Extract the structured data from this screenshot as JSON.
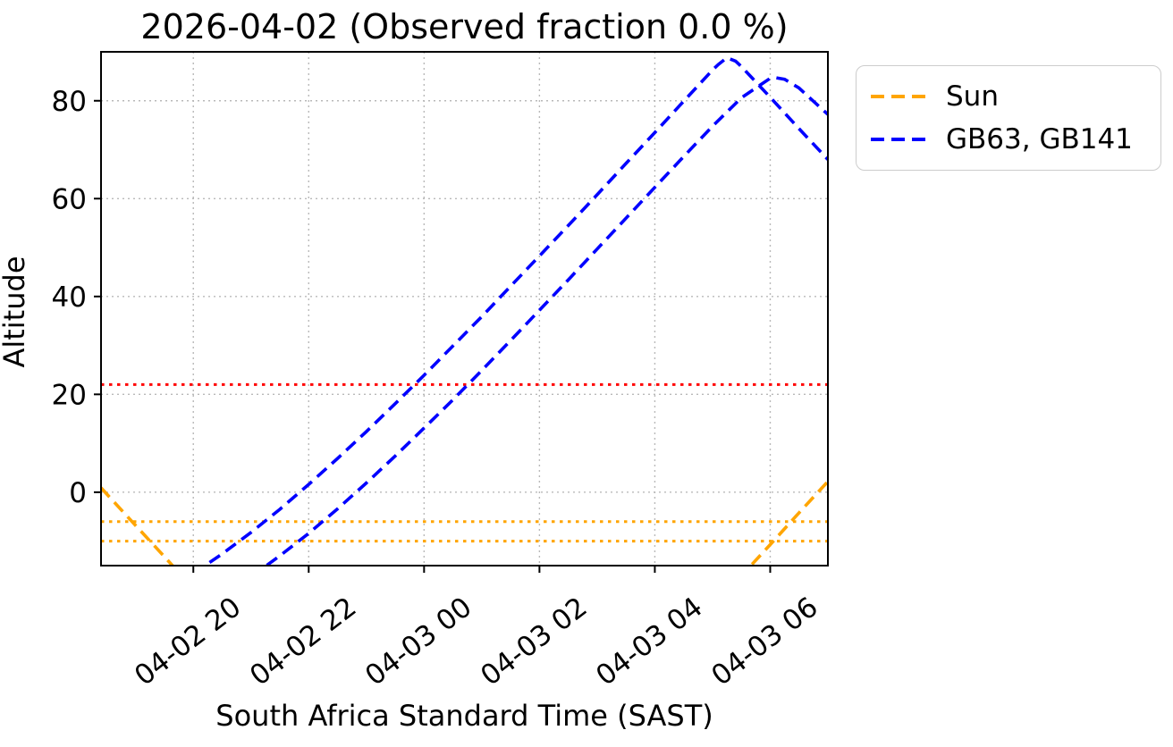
{
  "chart_data": {
    "type": "line",
    "title": "2026-04-02 (Observed fraction 0.0 %)",
    "xlabel": "South Africa Standard Time (SAST)",
    "ylabel": "Altitude",
    "xlim": [
      18.4,
      31.0
    ],
    "ylim": [
      -15,
      90
    ],
    "grid": true,
    "legend_position": "outside upper right",
    "xticks": [
      {
        "t": 20,
        "label": "04-02 20"
      },
      {
        "t": 22,
        "label": "04-02 22"
      },
      {
        "t": 24,
        "label": "04-03 00"
      },
      {
        "t": 26,
        "label": "04-03 02"
      },
      {
        "t": 28,
        "label": "04-03 04"
      },
      {
        "t": 30,
        "label": "04-03 06"
      }
    ],
    "yticks": [
      0,
      20,
      40,
      60,
      80
    ],
    "reference_lines": [
      {
        "name": "elevation-limit-line",
        "value": 22,
        "color": "#ff0000",
        "linestyle": "dotted"
      },
      {
        "name": "sun-twilight-line-upper",
        "value": -6,
        "color": "#ffa500",
        "linestyle": "dotted"
      },
      {
        "name": "sun-twilight-line-lower",
        "value": -10,
        "color": "#ffa500",
        "linestyle": "dotted"
      }
    ],
    "series": [
      {
        "name": "Sun",
        "color": "#ffa500",
        "linestyle": "dashed",
        "tracks": [
          [
            [
              18.4,
              0.9
            ],
            [
              18.5,
              -0.4
            ],
            [
              19.0,
              -6.8
            ],
            [
              19.5,
              -13.2
            ],
            [
              20.0,
              -19.7
            ],
            [
              20.5,
              -26.0
            ],
            [
              29.0,
              -23.5
            ],
            [
              29.5,
              -17.1
            ],
            [
              30.0,
              -10.7
            ],
            [
              30.5,
              -4.2
            ],
            [
              31.0,
              2.2
            ]
          ]
        ]
      },
      {
        "name": "GB63, GB141",
        "color": "#0000ff",
        "linestyle": "dashed",
        "tracks": [
          [
            [
              20.0,
              -16.6
            ],
            [
              20.5,
              -12.6
            ],
            [
              21.0,
              -8.2
            ],
            [
              21.5,
              -3.5
            ],
            [
              22.0,
              1.6
            ],
            [
              22.5,
              6.9
            ],
            [
              23.0,
              12.4
            ],
            [
              23.5,
              18.1
            ],
            [
              24.0,
              23.9
            ],
            [
              24.5,
              29.9
            ],
            [
              25.0,
              35.9
            ],
            [
              25.5,
              42.1
            ],
            [
              26.0,
              48.3
            ],
            [
              26.5,
              54.5
            ],
            [
              27.0,
              60.8
            ],
            [
              27.5,
              67.2
            ],
            [
              28.0,
              73.5
            ],
            [
              28.5,
              79.9
            ],
            [
              29.0,
              86.3
            ],
            [
              29.1,
              87.4
            ],
            [
              29.25,
              88.8
            ],
            [
              29.4,
              88.1
            ],
            [
              29.5,
              87.0
            ],
            [
              30.0,
              80.7
            ],
            [
              30.5,
              74.3
            ],
            [
              31.0,
              68.0
            ]
          ],
          [
            [
              21.0,
              -17.3
            ],
            [
              21.5,
              -13.0
            ],
            [
              22.0,
              -8.4
            ],
            [
              22.5,
              -3.4
            ],
            [
              23.0,
              1.9
            ],
            [
              23.5,
              7.4
            ],
            [
              24.0,
              13.1
            ],
            [
              24.5,
              18.9
            ],
            [
              25.0,
              24.9
            ],
            [
              25.5,
              31.0
            ],
            [
              26.0,
              37.2
            ],
            [
              26.5,
              43.4
            ],
            [
              27.0,
              49.7
            ],
            [
              27.5,
              56.0
            ],
            [
              28.0,
              62.3
            ],
            [
              28.5,
              68.6
            ],
            [
              29.0,
              74.8
            ],
            [
              29.5,
              80.6
            ],
            [
              30.0,
              84.6
            ],
            [
              30.1,
              84.7
            ],
            [
              30.25,
              84.4
            ],
            [
              30.5,
              82.6
            ],
            [
              31.0,
              77.2
            ]
          ]
        ]
      }
    ],
    "colors": {
      "sun": "#ffa500",
      "targets": "#0000ff",
      "elevation_limit": "#ff0000",
      "grid": "#b9b9b9",
      "spine": "#000000",
      "legend_border": "#cccccc"
    }
  }
}
